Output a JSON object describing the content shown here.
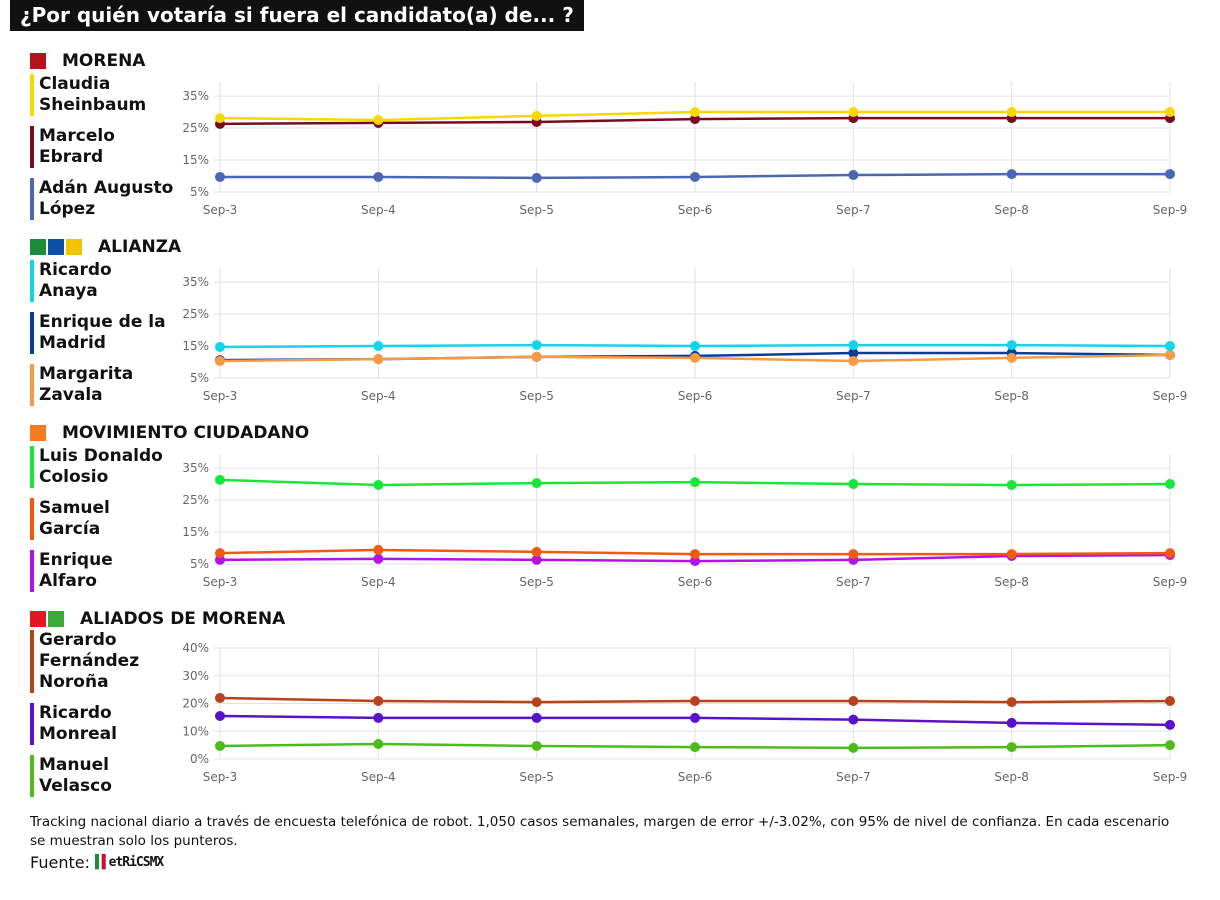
{
  "title": "¿Por quién votaría si fuera el candidato(a) de... ?",
  "note": "Tracking nacional diario a través de encuesta telefónica de robot. 1,050 casos semanales, margen de error +/-3.02%, con 95% de nivel de confianza. En cada escenario se muestran solo los punteros.",
  "source_label": "Fuente:",
  "source_logo": "MetricsMx",
  "chart_data": [
    {
      "type": "line",
      "party": "MORENA",
      "logos": [
        {
          "text": "morena",
          "color": "#b5121b"
        }
      ],
      "categories": [
        "Sep-3",
        "Sep-4",
        "Sep-5",
        "Sep-6",
        "Sep-7",
        "Sep-8",
        "Sep-9"
      ],
      "yticks": [
        "5%",
        "15%",
        "25%",
        "35%"
      ],
      "ytick_values": [
        5,
        15,
        25,
        35
      ],
      "ylim": [
        5,
        39.4
      ],
      "grid": true,
      "series": [
        {
          "name": "Claudia Sheinbaum",
          "name_lines": [
            "Claudia",
            "Sheinbaum"
          ],
          "color": "#f7d708",
          "values": [
            28.1,
            27.5,
            28.8,
            30,
            30,
            30,
            30
          ]
        },
        {
          "name": "Marcelo Ebrard",
          "name_lines": [
            "Marcelo",
            "Ebrard"
          ],
          "color": "#7a0b1f",
          "values": [
            26.3,
            26.6,
            26.9,
            27.8,
            28.1,
            28.1,
            28.1
          ]
        },
        {
          "name": "Adán Augusto López",
          "name_lines": [
            "Adán Augusto",
            "López"
          ],
          "color": "#4a66b4",
          "values": [
            9.7,
            9.7,
            9.4,
            9.7,
            10.3,
            10.6,
            10.6
          ]
        }
      ]
    },
    {
      "type": "line",
      "party": "ALIANZA",
      "logos": [
        {
          "text": "PRI",
          "color": "#1a8c3a"
        },
        {
          "text": "PAN",
          "color": "#0b4ea2"
        },
        {
          "text": "PRD",
          "color": "#f2c300"
        }
      ],
      "categories": [
        "Sep-3",
        "Sep-4",
        "Sep-5",
        "Sep-6",
        "Sep-7",
        "Sep-8",
        "Sep-9"
      ],
      "yticks": [
        "5%",
        "15%",
        "25%",
        "35%"
      ],
      "ytick_values": [
        5,
        15,
        25,
        35
      ],
      "ylim": [
        5,
        39.4
      ],
      "grid": true,
      "series": [
        {
          "name": "Ricardo Anaya",
          "name_lines": [
            "Ricardo",
            "Anaya"
          ],
          "color": "#16d4e8",
          "values": [
            14.7,
            15,
            15.3,
            15,
            15.3,
            15.3,
            15
          ]
        },
        {
          "name": "Margarita Zavala",
          "name_lines": [
            "Margarita",
            "Zavala"
          ],
          "color": "#f79a45",
          "values": [
            10.3,
            10.9,
            11.6,
            11.3,
            10.3,
            11.3,
            12.2
          ]
        },
        {
          "name": "Enrique de la Madrid",
          "name_lines": [
            "Enrique de la",
            "Madrid"
          ],
          "color": "#0a3d9a",
          "values": [
            10.6,
            10.9,
            11.6,
            11.9,
            12.8,
            12.8,
            12.2
          ]
        }
      ],
      "legend_order": [
        0,
        2,
        1
      ]
    },
    {
      "type": "line",
      "party": "MOVIMIENTO CIUDADANO",
      "logos": [
        {
          "text": "MC",
          "color": "#f47b20"
        }
      ],
      "categories": [
        "Sep-3",
        "Sep-4",
        "Sep-5",
        "Sep-6",
        "Sep-7",
        "Sep-8",
        "Sep-9"
      ],
      "yticks": [
        "5%",
        "15%",
        "25%",
        "35%"
      ],
      "ytick_values": [
        5,
        15,
        25,
        35
      ],
      "ylim": [
        5,
        39.4
      ],
      "grid": true,
      "series": [
        {
          "name": "Luis Donaldo Colosio",
          "name_lines": [
            "Luis Donaldo",
            "Colosio"
          ],
          "color": "#19e63c",
          "values": [
            31.3,
            29.7,
            30.3,
            30.6,
            30,
            29.7,
            30
          ]
        },
        {
          "name": "Samuel García",
          "name_lines": [
            "Samuel",
            "García"
          ],
          "color": "#f25a12",
          "values": [
            8.4,
            9.4,
            8.8,
            8.1,
            8.1,
            8.1,
            8.4
          ]
        },
        {
          "name": "Enrique Alfaro",
          "name_lines": [
            "Enrique",
            "Alfaro"
          ],
          "color": "#b312e8",
          "values": [
            6.3,
            6.6,
            6.3,
            5.9,
            6.3,
            7.5,
            7.8
          ]
        }
      ]
    },
    {
      "type": "line",
      "party": "ALIADOS DE MORENA",
      "logos": [
        {
          "text": "PT",
          "color": "#e3171f"
        },
        {
          "text": "verde",
          "color": "#3aab3a"
        }
      ],
      "categories": [
        "Sep-3",
        "Sep-4",
        "Sep-5",
        "Sep-6",
        "Sep-7",
        "Sep-8",
        "Sep-9"
      ],
      "yticks": [
        "0%",
        "10%",
        "20%",
        "30%",
        "40%"
      ],
      "ytick_values": [
        0,
        10,
        20,
        30,
        40
      ],
      "ylim": [
        0,
        40
      ],
      "grid": true,
      "series": [
        {
          "name": "Gerardo Fernández Noroña",
          "name_lines": [
            "Gerardo",
            "Fernández",
            "Noroña"
          ],
          "color": "#b5441c",
          "values": [
            22,
            20.9,
            20.5,
            20.9,
            20.9,
            20.5,
            20.9
          ]
        },
        {
          "name": "Ricardo Monreal",
          "name_lines": [
            "Ricardo",
            "Monreal"
          ],
          "color": "#5a12c8",
          "values": [
            15.5,
            14.8,
            14.8,
            14.8,
            14.2,
            13,
            12.3
          ]
        },
        {
          "name": "Manuel Velasco",
          "name_lines": [
            "Manuel",
            "Velasco"
          ],
          "color": "#4cbb1c",
          "values": [
            4.7,
            5.4,
            4.7,
            4.3,
            4,
            4.3,
            5
          ]
        }
      ]
    }
  ]
}
